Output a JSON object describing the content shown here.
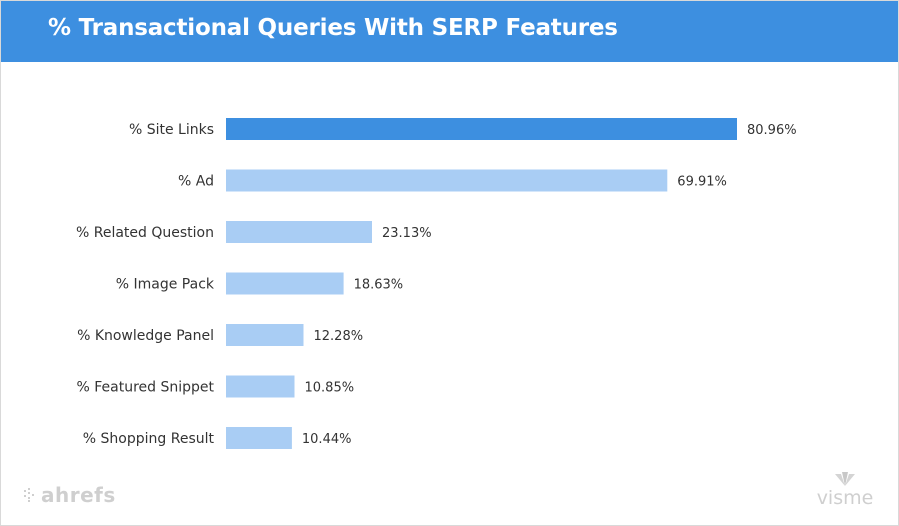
{
  "chart_data": {
    "type": "bar",
    "orientation": "horizontal",
    "title": "% Transactional Queries With SERP Features",
    "categories": [
      "% Site Links",
      "% Ad",
      "% Related Question",
      "% Image Pack",
      "% Knowledge Panel",
      "% Featured Snippet",
      "% Shopping Result"
    ],
    "values": [
      80.96,
      69.91,
      23.13,
      18.63,
      12.28,
      10.85,
      10.44
    ],
    "value_labels": [
      "80.96%",
      "69.91%",
      "23.13%",
      "18.63%",
      "12.28%",
      "10.85%",
      "10.44%"
    ],
    "xlabel": "",
    "ylabel": "",
    "grid": false,
    "legend": "none",
    "colors": {
      "highlight": "#3d8fe0",
      "default": "#a9cdf4"
    },
    "highlight_index": 0
  },
  "header": {
    "background": "#3d8fe0"
  },
  "branding": {
    "left_logo_text": "ahrefs",
    "right_logo_text": "visme"
  }
}
